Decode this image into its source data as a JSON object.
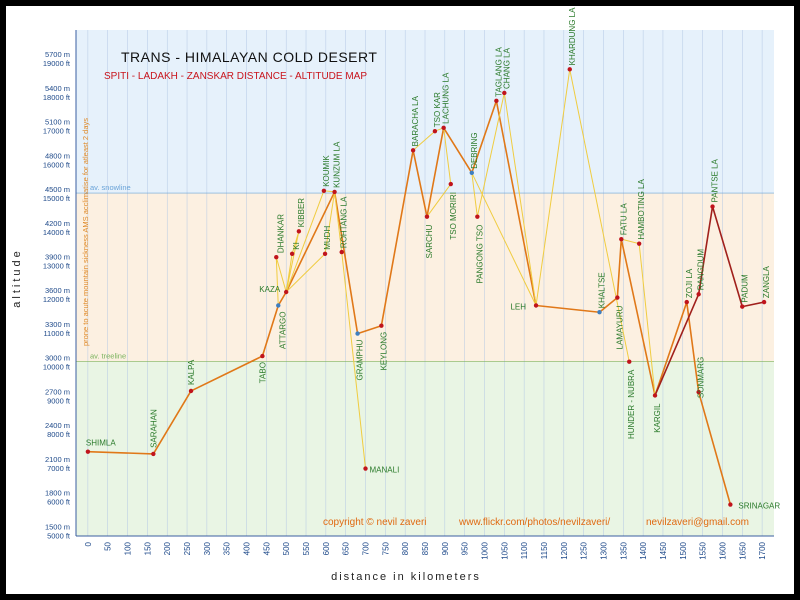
{
  "chart_data": {
    "type": "line",
    "title": "TRANS - HIMALAYAN  COLD  DESERT",
    "subtitle": "SPITI - LADAKH - ZANSKAR      DISTANCE - ALTITUDE  MAP",
    "xlabel": "distance  in  kilometers",
    "ylabel": "altitude",
    "xlim": [
      -30,
      1730
    ],
    "ylim": [
      1450,
      5950
    ],
    "x_ticks": [
      0,
      50,
      100,
      150,
      200,
      250,
      300,
      350,
      400,
      450,
      500,
      550,
      600,
      650,
      700,
      750,
      800,
      850,
      900,
      950,
      1000,
      1050,
      1100,
      1150,
      1200,
      1250,
      1300,
      1350,
      1400,
      1450,
      1500,
      1550,
      1600,
      1650,
      1700
    ],
    "y_ticks": [
      {
        "m": 5700,
        "m_label": "5700 m",
        "ft_label": "19000 ft"
      },
      {
        "m": 5400,
        "m_label": "5400 m",
        "ft_label": "18000 ft"
      },
      {
        "m": 5100,
        "m_label": "5100 m",
        "ft_label": "17000 ft"
      },
      {
        "m": 4800,
        "m_label": "4800 m",
        "ft_label": "16000 ft"
      },
      {
        "m": 4500,
        "m_label": "4500 m",
        "ft_label": "15000 ft"
      },
      {
        "m": 4200,
        "m_label": "4200 m",
        "ft_label": "14000 ft"
      },
      {
        "m": 3900,
        "m_label": "3900 m",
        "ft_label": "13000 ft"
      },
      {
        "m": 3600,
        "m_label": "3600 m",
        "ft_label": "12000 ft"
      },
      {
        "m": 3300,
        "m_label": "3300 m",
        "ft_label": "11000 ft"
      },
      {
        "m": 3000,
        "m_label": "3000 m",
        "ft_label": "10000 ft"
      },
      {
        "m": 2700,
        "m_label": "2700 m",
        "ft_label": "9000 ft"
      },
      {
        "m": 2400,
        "m_label": "2400 m",
        "ft_label": "8000 ft"
      },
      {
        "m": 2100,
        "m_label": "2100 m",
        "ft_label": "7000 ft"
      },
      {
        "m": 1800,
        "m_label": "1800 m",
        "ft_label": "6000 ft"
      },
      {
        "m": 1500,
        "m_label": "1500 m",
        "ft_label": "5000 ft"
      }
    ],
    "bands": [
      {
        "from": 4500,
        "to": 5950,
        "color": "#e6f1fb"
      },
      {
        "from": 3000,
        "to": 4500,
        "color": "#fcf0e1"
      },
      {
        "from": 1450,
        "to": 3000,
        "color": "#e9f5e4"
      }
    ],
    "reference_lines": [
      {
        "y": 4500,
        "label": "av. snowline",
        "color": "#6aa3d8"
      },
      {
        "y": 3000,
        "label": "av. treeline",
        "color": "#7ab35d"
      }
    ],
    "side_note": "prone to acute mountain sickness AMS    acclimatise for atleast 2 days",
    "footer": {
      "copyright": "copyright  ©  nevil zaveri",
      "url": "www.flickr.com/photos/nevilzaveri/",
      "email": "nevilzaveri@gmail.com"
    },
    "colors": {
      "main": "#e07818",
      "side": "#f0cc40",
      "zanskar": "#a0201c",
      "dot": "#c0141c",
      "dot_town": "#3f7fc0",
      "label": "#2a7a2a"
    },
    "places": [
      {
        "name": "SHIMLA",
        "x": 0,
        "y": 2200,
        "dot": "red",
        "label_dx": -2,
        "label_dy": -6,
        "rot": 0
      },
      {
        "name": "SARAHAN",
        "x": 165,
        "y": 2180,
        "dot": "red",
        "label_dx": 0,
        "label_dy": -6,
        "rot": -90
      },
      {
        "name": "KALPA",
        "x": 260,
        "y": 2740,
        "dot": "red",
        "label_dx": 0,
        "label_dy": -6,
        "rot": -90
      },
      {
        "name": "TABO",
        "x": 440,
        "y": 3050,
        "dot": "red",
        "label_dx": 0,
        "label_dy": 6,
        "rot": -90,
        "anchor": "end"
      },
      {
        "name": "ATTARGO",
        "x": 480,
        "y": 3500,
        "dot": "blue",
        "label_dx": 4,
        "label_dy": 6,
        "rot": -90,
        "anchor": "end"
      },
      {
        "name": "KAZA",
        "x": 500,
        "y": 3620,
        "dot": "red",
        "label_dx": -6,
        "label_dy": 0,
        "rot": 0,
        "anchor": "end"
      },
      {
        "name": "DHANKAR",
        "x": 475,
        "y": 3930,
        "dot": "red",
        "label_dx": 4,
        "label_dy": -4,
        "rot": -90
      },
      {
        "name": "KI",
        "x": 515,
        "y": 3960,
        "dot": "red",
        "label_dx": 4,
        "label_dy": -4,
        "rot": -90
      },
      {
        "name": "KIBBER",
        "x": 532,
        "y": 4160,
        "dot": "red",
        "label_dx": 2,
        "label_dy": -4,
        "rot": -90
      },
      {
        "name": "KOUMIK",
        "x": 595,
        "y": 4520,
        "dot": "red",
        "label_dx": 2,
        "label_dy": -4,
        "rot": -90
      },
      {
        "name": "MUDH",
        "x": 598,
        "y": 3960,
        "dot": "red",
        "label_dx": 2,
        "label_dy": -4,
        "rot": -90
      },
      {
        "name": "KUNZUM LA",
        "x": 622,
        "y": 4510,
        "dot": "red",
        "label_dx": 2,
        "label_dy": -4,
        "rot": -90
      },
      {
        "name": "ROHTANG LA",
        "x": 640,
        "y": 3975,
        "dot": "red",
        "label_dx": 2,
        "label_dy": -4,
        "rot": -90
      },
      {
        "name": "GRAMPHU",
        "x": 680,
        "y": 3250,
        "dot": "blue",
        "label_dx": 2,
        "label_dy": 6,
        "rot": -90,
        "anchor": "end"
      },
      {
        "name": "MANALI",
        "x": 700,
        "y": 2050,
        "dot": "red",
        "label_dx": 4,
        "label_dy": 4,
        "rot": 0
      },
      {
        "name": "KEYLONG",
        "x": 740,
        "y": 3320,
        "dot": "red",
        "label_dx": 2,
        "label_dy": 6,
        "rot": -90,
        "anchor": "end"
      },
      {
        "name": "BARACHA LA",
        "x": 820,
        "y": 4880,
        "dot": "red",
        "label_dx": 2,
        "label_dy": -4,
        "rot": -90
      },
      {
        "name": "SARCHU",
        "x": 855,
        "y": 4290,
        "dot": "red",
        "label_dx": 2,
        "label_dy": 8,
        "rot": -90,
        "anchor": "end"
      },
      {
        "name": "TSO KAR",
        "x": 875,
        "y": 5050,
        "dot": "red",
        "label_dx": 2,
        "label_dy": -4,
        "rot": -90
      },
      {
        "name": "LACHUNG LA",
        "x": 897,
        "y": 5080,
        "dot": "red",
        "label_dx": 2,
        "label_dy": -4,
        "rot": -90
      },
      {
        "name": "TSO MORIRI",
        "x": 915,
        "y": 4580,
        "dot": "red",
        "label_dx": 2,
        "label_dy": 8,
        "rot": -90,
        "anchor": "end"
      },
      {
        "name": "PANGONG TSO",
        "x": 982,
        "y": 4290,
        "dot": "red",
        "label_dx": 2,
        "label_dy": 8,
        "rot": -90,
        "anchor": "end"
      },
      {
        "name": "DEBRING",
        "x": 968,
        "y": 4680,
        "dot": "blue",
        "label_dx": 2,
        "label_dy": -4,
        "rot": -90
      },
      {
        "name": "TAGLANG LA",
        "x": 1030,
        "y": 5320,
        "dot": "red",
        "label_dx": 2,
        "label_dy": -4,
        "rot": -90
      },
      {
        "name": "CHANG LA",
        "x": 1050,
        "y": 5390,
        "dot": "red",
        "label_dx": 2,
        "label_dy": -4,
        "rot": -90
      },
      {
        "name": "LEH",
        "x": 1130,
        "y": 3500,
        "dot": "red",
        "label_dx": -10,
        "label_dy": 4,
        "rot": 0,
        "anchor": "end"
      },
      {
        "name": "KHARDUNG LA",
        "x": 1215,
        "y": 5600,
        "dot": "red",
        "label_dx": 2,
        "label_dy": -4,
        "rot": -90
      },
      {
        "name": "KHALTSE",
        "x": 1290,
        "y": 3440,
        "dot": "blue",
        "label_dx": 2,
        "label_dy": -4,
        "rot": -90
      },
      {
        "name": "LAMAYURU",
        "x": 1335,
        "y": 3570,
        "dot": "red",
        "label_dx": 2,
        "label_dy": 8,
        "rot": -90,
        "anchor": "end"
      },
      {
        "name": "FATU LA",
        "x": 1345,
        "y": 4090,
        "dot": "red",
        "label_dx": 2,
        "label_dy": -4,
        "rot": -90
      },
      {
        "name": "HUNDER - NUBRA",
        "x": 1365,
        "y": 3000,
        "dot": "red",
        "label_dx": 2,
        "label_dy": 8,
        "rot": -90,
        "anchor": "end"
      },
      {
        "name": "HAMBOTING LA",
        "x": 1390,
        "y": 4050,
        "dot": "red",
        "label_dx": 2,
        "label_dy": -4,
        "rot": -90
      },
      {
        "name": "KARGIL",
        "x": 1430,
        "y": 2700,
        "dot": "red",
        "label_dx": 2,
        "label_dy": 8,
        "rot": -90,
        "anchor": "end"
      },
      {
        "name": "ZOJI LA",
        "x": 1510,
        "y": 3530,
        "dot": "red",
        "label_dx": 2,
        "label_dy": -4,
        "rot": -90
      },
      {
        "name": "RANGDUM",
        "x": 1540,
        "y": 3600,
        "dot": "red",
        "label_dx": 2,
        "label_dy": -4,
        "rot": -90
      },
      {
        "name": "SONMARG",
        "x": 1540,
        "y": 2730,
        "dot": "red",
        "label_dx": 2,
        "label_dy": 6,
        "rot": -90
      },
      {
        "name": "PANTSE LA",
        "x": 1575,
        "y": 4380,
        "dot": "red",
        "label_dx": 2,
        "label_dy": -4,
        "rot": -90
      },
      {
        "name": "SRINAGAR",
        "x": 1620,
        "y": 1730,
        "dot": "red",
        "label_dx": 8,
        "label_dy": 4,
        "rot": 0
      },
      {
        "name": "PADUM",
        "x": 1650,
        "y": 3490,
        "dot": "red",
        "label_dx": 2,
        "label_dy": -4,
        "rot": -90
      },
      {
        "name": "ZANGLA",
        "x": 1705,
        "y": 3530,
        "dot": "red",
        "label_dx": 2,
        "label_dy": -4,
        "rot": -90
      }
    ],
    "series": [
      {
        "style": "main",
        "points": [
          [
            0,
            2200
          ],
          [
            165,
            2180
          ],
          [
            260,
            2740
          ],
          [
            440,
            3050
          ],
          [
            480,
            3500
          ],
          [
            500,
            3620
          ],
          [
            622,
            4510
          ],
          [
            680,
            3250
          ],
          [
            740,
            3320
          ],
          [
            820,
            4880
          ],
          [
            855,
            4290
          ],
          [
            897,
            5080
          ],
          [
            968,
            4680
          ],
          [
            1030,
            5320
          ],
          [
            1130,
            3500
          ],
          [
            1290,
            3440
          ],
          [
            1335,
            3570
          ],
          [
            1345,
            4090
          ],
          [
            1430,
            2700
          ],
          [
            1510,
            3530
          ],
          [
            1540,
            2730
          ],
          [
            1620,
            1730
          ]
        ]
      },
      {
        "style": "side",
        "points": [
          [
            480,
            3500
          ],
          [
            475,
            3930
          ],
          [
            500,
            3620
          ]
        ]
      },
      {
        "style": "side",
        "points": [
          [
            500,
            3620
          ],
          [
            515,
            3960
          ],
          [
            532,
            4160
          ],
          [
            500,
            3620
          ]
        ]
      },
      {
        "style": "side",
        "points": [
          [
            500,
            3620
          ],
          [
            595,
            4520
          ],
          [
            622,
            4510
          ]
        ]
      },
      {
        "style": "side",
        "points": [
          [
            500,
            3620
          ],
          [
            598,
            3960
          ],
          [
            622,
            4510
          ]
        ]
      },
      {
        "style": "side",
        "points": [
          [
            622,
            4510
          ],
          [
            640,
            3975
          ],
          [
            700,
            2050
          ]
        ]
      },
      {
        "style": "side",
        "points": [
          [
            820,
            4880
          ],
          [
            875,
            5050
          ],
          [
            897,
            5080
          ],
          [
            915,
            4580
          ],
          [
            855,
            4290
          ]
        ]
      },
      {
        "style": "side",
        "points": [
          [
            968,
            4680
          ],
          [
            982,
            4290
          ],
          [
            1050,
            5390
          ],
          [
            1130,
            3500
          ]
        ]
      },
      {
        "style": "side",
        "points": [
          [
            1130,
            3500
          ],
          [
            1215,
            5600
          ],
          [
            1365,
            3000
          ]
        ]
      },
      {
        "style": "side",
        "points": [
          [
            1130,
            3500
          ],
          [
            968,
            4680
          ]
        ]
      },
      {
        "style": "side",
        "points": [
          [
            1345,
            4090
          ],
          [
            1390,
            4050
          ],
          [
            1430,
            2700
          ]
        ]
      },
      {
        "style": "zanskar",
        "points": [
          [
            1430,
            2700
          ],
          [
            1540,
            3600
          ],
          [
            1575,
            4380
          ],
          [
            1650,
            3490
          ],
          [
            1705,
            3530
          ]
        ]
      }
    ]
  }
}
